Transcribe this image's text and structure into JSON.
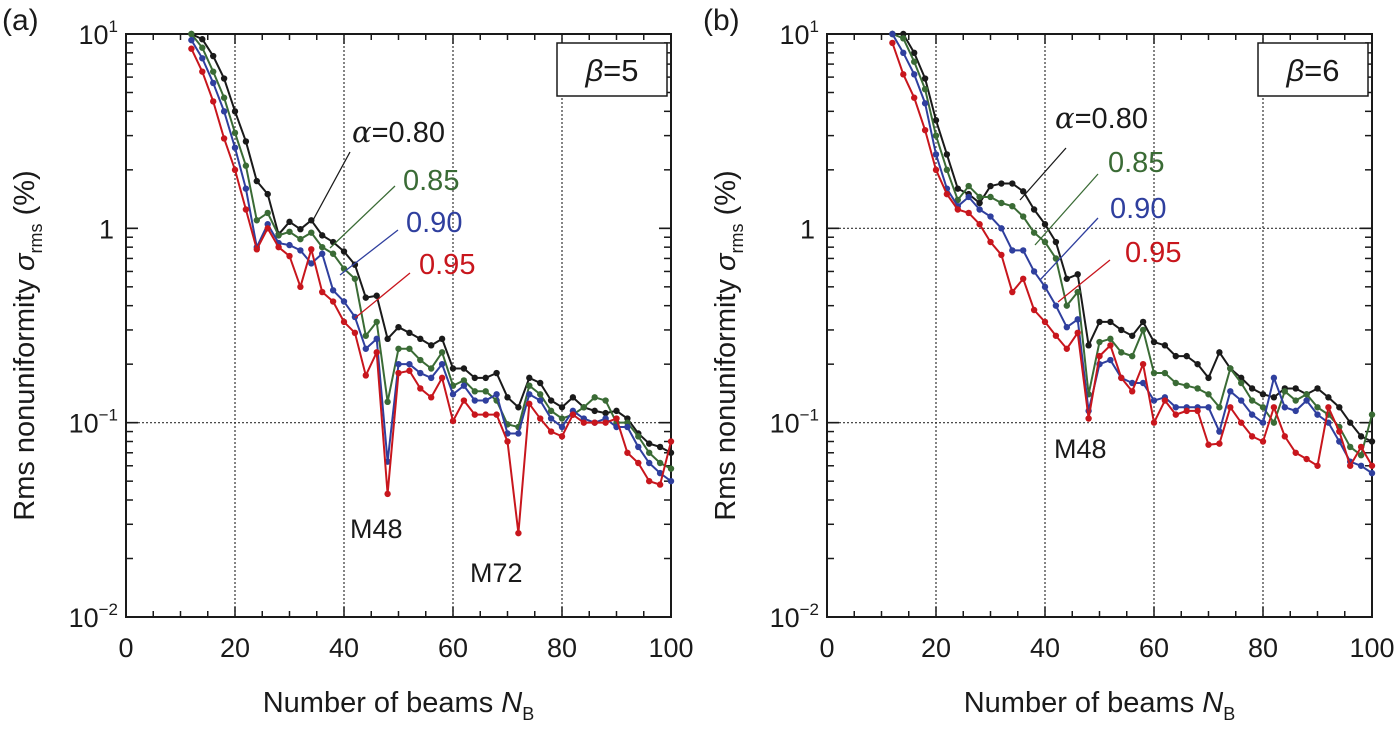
{
  "chart_data": [
    {
      "type": "line",
      "panel_label": "(a)",
      "box_label": "β=5",
      "xlabel": "Number of beams N_B",
      "xlabel_main": "Number of beams ",
      "xlabel_var": "N",
      "xlabel_sub": "B",
      "ylabel": "Rms nonuniformity σ_rms (%)",
      "ylabel_main": "Rms nonuniformity ",
      "ylabel_var": "σ",
      "ylabel_sub": "rms",
      "ylabel_unit": " (%)",
      "xlim": [
        0,
        100
      ],
      "ylim": [
        0.01,
        10
      ],
      "yscale": "log",
      "xticks": [
        "0",
        "20",
        "40",
        "60",
        "80",
        "100"
      ],
      "yticks": [
        {
          "base": "10",
          "exp": "1"
        },
        {
          "base": "1",
          "exp": ""
        },
        {
          "base": "10",
          "exp": "−1"
        },
        {
          "base": "10",
          "exp": "−2"
        }
      ],
      "grid": "dotted at x=20,40,60,80 and y=0.1",
      "annotations": [
        "M48",
        "M72"
      ],
      "x": [
        12,
        14,
        16,
        18,
        20,
        22,
        24,
        26,
        28,
        30,
        32,
        34,
        36,
        38,
        40,
        42,
        44,
        46,
        48,
        50,
        52,
        54,
        56,
        58,
        60,
        62,
        64,
        66,
        68,
        70,
        72,
        74,
        76,
        78,
        80,
        82,
        84,
        86,
        88,
        90,
        92,
        94,
        96,
        98,
        100
      ],
      "series": [
        {
          "name": "α=0.80",
          "label": "α=0.80",
          "color": "#1a1a1a",
          "values": [
            10.0,
            9.4,
            7.7,
            5.9,
            4.0,
            2.8,
            1.75,
            1.5,
            0.93,
            1.08,
            0.99,
            1.1,
            0.92,
            0.85,
            0.76,
            0.65,
            0.44,
            0.45,
            0.27,
            0.31,
            0.29,
            0.27,
            0.25,
            0.27,
            0.19,
            0.19,
            0.17,
            0.17,
            0.18,
            0.135,
            0.12,
            0.17,
            0.16,
            0.13,
            0.12,
            0.135,
            0.12,
            0.115,
            0.112,
            0.115,
            0.105,
            0.088,
            0.078,
            0.075,
            0.07
          ]
        },
        {
          "name": "α=0.85",
          "label": "0.85",
          "color": "#3a6b35",
          "values": [
            10.2,
            8.5,
            6.4,
            4.7,
            3.1,
            2.1,
            1.1,
            1.2,
            0.92,
            0.96,
            0.88,
            0.95,
            0.8,
            0.74,
            0.62,
            0.55,
            0.28,
            0.33,
            0.128,
            0.24,
            0.24,
            0.21,
            0.19,
            0.23,
            0.155,
            0.165,
            0.145,
            0.145,
            0.13,
            0.098,
            0.095,
            0.155,
            0.14,
            0.115,
            0.105,
            0.11,
            0.12,
            0.135,
            0.13,
            0.1,
            0.1,
            0.085,
            0.07,
            0.062,
            0.058
          ]
        },
        {
          "name": "α=0.90",
          "label": "0.90",
          "color": "#2f3f9e",
          "values": [
            9.3,
            7.5,
            5.6,
            4.0,
            2.6,
            1.6,
            0.8,
            1.05,
            0.84,
            0.82,
            0.77,
            0.66,
            0.74,
            0.48,
            0.42,
            0.35,
            0.24,
            0.27,
            0.063,
            0.2,
            0.2,
            0.18,
            0.17,
            0.2,
            0.14,
            0.155,
            0.13,
            0.13,
            0.14,
            0.088,
            0.088,
            0.14,
            0.13,
            0.105,
            0.095,
            0.115,
            0.105,
            0.1,
            0.105,
            0.095,
            0.095,
            0.075,
            0.062,
            0.055,
            0.05
          ]
        },
        {
          "name": "α=0.95",
          "label": "0.95",
          "color": "#c8161d",
          "values": [
            8.4,
            6.4,
            4.5,
            2.9,
            2.0,
            1.25,
            0.78,
            1.0,
            0.8,
            0.72,
            0.5,
            0.78,
            0.47,
            0.42,
            0.33,
            0.29,
            0.175,
            0.23,
            0.043,
            0.18,
            0.185,
            0.15,
            0.135,
            0.17,
            0.102,
            0.13,
            0.11,
            0.11,
            0.11,
            0.08,
            0.027,
            0.125,
            0.105,
            0.09,
            0.085,
            0.11,
            0.1,
            0.1,
            0.1,
            0.105,
            0.07,
            0.062,
            0.05,
            0.048,
            0.08
          ]
        }
      ]
    },
    {
      "type": "line",
      "panel_label": "(b)",
      "box_label": "β=6",
      "xlabel": "Number of beams N_B",
      "xlabel_main": "Number of beams ",
      "xlabel_var": "N",
      "xlabel_sub": "B",
      "ylabel": "Rms nonuniformity σ_rms (%)",
      "ylabel_main": "Rms nonuniformity ",
      "ylabel_var": "σ",
      "ylabel_sub": "rms",
      "ylabel_unit": " (%)",
      "xlim": [
        0,
        100
      ],
      "ylim": [
        0.01,
        10
      ],
      "yscale": "log",
      "xticks": [
        "0",
        "20",
        "40",
        "60",
        "80",
        "100"
      ],
      "yticks": [
        {
          "base": "10",
          "exp": "1"
        },
        {
          "base": "1",
          "exp": ""
        },
        {
          "base": "10",
          "exp": "−1"
        },
        {
          "base": "10",
          "exp": "−2"
        }
      ],
      "grid": "dotted at x=20,40,60,80 and y=0.1, 1",
      "annotations": [
        "M48"
      ],
      "x": [
        12,
        14,
        16,
        18,
        20,
        22,
        24,
        26,
        28,
        30,
        32,
        34,
        36,
        38,
        40,
        42,
        44,
        46,
        48,
        50,
        52,
        54,
        56,
        58,
        60,
        62,
        64,
        66,
        68,
        70,
        72,
        74,
        76,
        78,
        80,
        82,
        84,
        86,
        88,
        90,
        92,
        94,
        96,
        98,
        100
      ],
      "series": [
        {
          "name": "α=0.80",
          "label": "α=0.80",
          "color": "#1a1a1a",
          "values": [
            13.0,
            10.5,
            8.0,
            5.9,
            3.6,
            2.4,
            1.6,
            1.5,
            1.35,
            1.65,
            1.7,
            1.7,
            1.55,
            1.25,
            1.05,
            0.85,
            0.55,
            0.58,
            0.25,
            0.33,
            0.33,
            0.3,
            0.28,
            0.33,
            0.26,
            0.25,
            0.22,
            0.22,
            0.2,
            0.17,
            0.23,
            0.19,
            0.17,
            0.15,
            0.14,
            0.135,
            0.15,
            0.15,
            0.14,
            0.15,
            0.135,
            0.12,
            0.1,
            0.085,
            0.08
          ]
        },
        {
          "name": "α=0.85",
          "label": "0.85",
          "color": "#3a6b35",
          "values": [
            12.0,
            9.5,
            7.2,
            5.2,
            3.0,
            2.0,
            1.4,
            1.65,
            1.45,
            1.45,
            1.35,
            1.3,
            1.15,
            0.95,
            0.85,
            0.7,
            0.4,
            0.47,
            0.14,
            0.26,
            0.27,
            0.23,
            0.22,
            0.3,
            0.18,
            0.18,
            0.16,
            0.155,
            0.15,
            0.14,
            0.12,
            0.19,
            0.16,
            0.13,
            0.12,
            0.1,
            0.145,
            0.13,
            0.14,
            0.12,
            0.11,
            0.095,
            0.075,
            0.068,
            0.11
          ]
        },
        {
          "name": "α=0.90",
          "label": "0.90",
          "color": "#2f3f9e",
          "values": [
            11.0,
            8.0,
            6.2,
            4.4,
            2.4,
            1.6,
            1.3,
            1.45,
            1.25,
            1.15,
            1.0,
            0.77,
            0.77,
            0.6,
            0.5,
            0.4,
            0.31,
            0.34,
            0.115,
            0.2,
            0.21,
            0.17,
            0.16,
            0.16,
            0.13,
            0.135,
            0.12,
            0.12,
            0.12,
            0.12,
            0.09,
            0.145,
            0.13,
            0.11,
            0.1,
            0.17,
            0.12,
            0.115,
            0.13,
            0.11,
            0.1,
            0.08,
            0.063,
            0.06,
            0.055
          ]
        },
        {
          "name": "α=0.95",
          "label": "0.95",
          "color": "#c8161d",
          "values": [
            9.0,
            6.2,
            4.7,
            3.2,
            2.0,
            1.5,
            1.25,
            1.2,
            1.05,
            0.85,
            0.73,
            0.47,
            0.55,
            0.38,
            0.33,
            0.28,
            0.24,
            0.29,
            0.105,
            0.22,
            0.25,
            0.17,
            0.145,
            0.2,
            0.1,
            0.13,
            0.11,
            0.115,
            0.115,
            0.077,
            0.078,
            0.12,
            0.1,
            0.085,
            0.08,
            0.12,
            0.085,
            0.07,
            0.065,
            0.06,
            0.12,
            0.09,
            0.06,
            0.075,
            0.06
          ]
        }
      ]
    }
  ]
}
